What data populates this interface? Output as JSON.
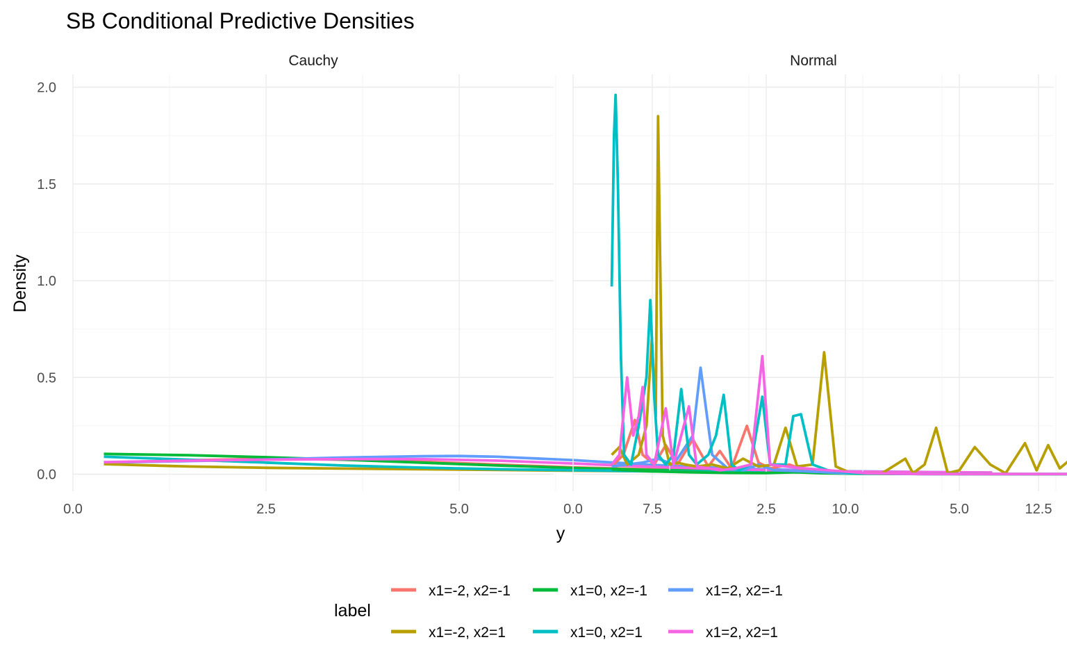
{
  "chart_data": {
    "type": "line",
    "title": "SB Conditional Predictive Densities",
    "xlabel": "y",
    "ylabel": "Density",
    "xlim": [
      0,
      12.5
    ],
    "ylim": [
      0,
      2.0
    ],
    "x_ticks": [
      "0.0",
      "2.5",
      "5.0",
      "7.5",
      "10.0",
      "12.5"
    ],
    "y_ticks": [
      "0.0",
      "0.5",
      "1.0",
      "1.5",
      "2.0"
    ],
    "grid": true,
    "legend": {
      "title": "label",
      "position": "bottom",
      "entries": [
        {
          "label": "x1=-2, x2=-1",
          "color": "#F8766D"
        },
        {
          "label": "x1=0, x2=-1",
          "color": "#00BA38"
        },
        {
          "label": "x1=2, x2=-1",
          "color": "#619CFF"
        },
        {
          "label": "x1=-2, x2=1",
          "color": "#B79F00"
        },
        {
          "label": "x1=0, x2=1",
          "color": "#00BFC4"
        },
        {
          "label": "x1=2, x2=1",
          "color": "#F564E3"
        }
      ]
    },
    "panels": [
      {
        "name": "Cauchy",
        "series": [
          {
            "name": "x1=-2, x2=-1",
            "color": "#F8766D",
            "points": [
              [
                0.4,
                0.06
              ],
              [
                1.5,
                0.072
              ],
              [
                2.5,
                0.08
              ],
              [
                3.5,
                0.075
              ],
              [
                4.5,
                0.065
              ],
              [
                5.5,
                0.05
              ],
              [
                6.5,
                0.035
              ],
              [
                7.5,
                0.025
              ],
              [
                8.5,
                0.018
              ],
              [
                10,
                0.012
              ],
              [
                11.9,
                0.008
              ]
            ]
          },
          {
            "name": "x1=0, x2=-1",
            "color": "#00BA38",
            "points": [
              [
                0.4,
                0.105
              ],
              [
                1.5,
                0.098
              ],
              [
                2.5,
                0.088
              ],
              [
                3.5,
                0.075
              ],
              [
                4.5,
                0.06
              ],
              [
                5.5,
                0.045
              ],
              [
                6.5,
                0.032
              ],
              [
                7.5,
                0.022
              ],
              [
                8.5,
                0.016
              ],
              [
                10,
                0.01
              ],
              [
                11.9,
                0.006
              ]
            ]
          },
          {
            "name": "x1=2, x2=-1",
            "color": "#619CFF",
            "points": [
              [
                0.4,
                0.06
              ],
              [
                1.5,
                0.068
              ],
              [
                2.5,
                0.076
              ],
              [
                3.5,
                0.086
              ],
              [
                4.5,
                0.093
              ],
              [
                5.0,
                0.094
              ],
              [
                5.5,
                0.09
              ],
              [
                6.5,
                0.072
              ],
              [
                7.5,
                0.048
              ],
              [
                8.5,
                0.03
              ],
              [
                10,
                0.015
              ],
              [
                11.9,
                0.008
              ]
            ]
          },
          {
            "name": "x1=-2, x2=1",
            "color": "#B79F00",
            "points": [
              [
                0.4,
                0.052
              ],
              [
                1.5,
                0.04
              ],
              [
                2.5,
                0.033
              ],
              [
                3.5,
                0.029
              ],
              [
                4.5,
                0.026
              ],
              [
                5.5,
                0.022
              ],
              [
                6.5,
                0.018
              ],
              [
                7.5,
                0.015
              ],
              [
                8.5,
                0.012
              ],
              [
                10,
                0.009
              ],
              [
                11.9,
                0.006
              ]
            ]
          },
          {
            "name": "x1=0, x2=1",
            "color": "#00BFC4",
            "points": [
              [
                0.4,
                0.09
              ],
              [
                1.5,
                0.075
              ],
              [
                2.5,
                0.06
              ],
              [
                3.5,
                0.045
              ],
              [
                4.5,
                0.034
              ],
              [
                5.5,
                0.026
              ],
              [
                6.5,
                0.02
              ],
              [
                7.5,
                0.015
              ],
              [
                8.5,
                0.012
              ],
              [
                10,
                0.008
              ],
              [
                11.9,
                0.005
              ]
            ]
          },
          {
            "name": "x1=2, x2=1",
            "color": "#F564E3",
            "points": [
              [
                0.4,
                0.062
              ],
              [
                1.5,
                0.07
              ],
              [
                2.5,
                0.075
              ],
              [
                3.5,
                0.078
              ],
              [
                4.5,
                0.078
              ],
              [
                5.5,
                0.07
              ],
              [
                6.5,
                0.055
              ],
              [
                7.5,
                0.038
              ],
              [
                8.5,
                0.025
              ],
              [
                10,
                0.014
              ],
              [
                11.9,
                0.008
              ]
            ]
          }
        ]
      },
      {
        "name": "Normal",
        "series": [
          {
            "name": "x1=-2, x2=-1",
            "color": "#F8766D",
            "points": [
              [
                0.5,
                0.04
              ],
              [
                0.65,
                0.1
              ],
              [
                0.8,
                0.28
              ],
              [
                0.9,
                0.1
              ],
              [
                1.05,
                0.05
              ],
              [
                1.2,
                0.15
              ],
              [
                1.35,
                0.05
              ],
              [
                1.55,
                0.18
              ],
              [
                1.75,
                0.04
              ],
              [
                1.9,
                0.12
              ],
              [
                2.05,
                0.03
              ],
              [
                2.25,
                0.25
              ],
              [
                2.4,
                0.06
              ],
              [
                2.55,
                0.03
              ],
              [
                2.8,
                0.05
              ],
              [
                3.0,
                0.02
              ],
              [
                3.5,
                0.008
              ],
              [
                4.0,
                0.003
              ],
              [
                5,
                0.001
              ],
              [
                12,
                0
              ]
            ]
          },
          {
            "name": "x1=0, x2=-1",
            "color": "#00BA38",
            "points": [
              [
                0.5,
                0.025
              ],
              [
                1.0,
                0.015
              ],
              [
                1.5,
                0.01
              ],
              [
                2.0,
                0.007
              ],
              [
                2.5,
                0.006
              ],
              [
                2.9,
                0.01
              ],
              [
                3.2,
                0.005
              ],
              [
                3.7,
                0.002
              ],
              [
                4.5,
                0.001
              ],
              [
                6,
                0
              ],
              [
                12,
                0
              ]
            ]
          },
          {
            "name": "x1=2, x2=-1",
            "color": "#619CFF",
            "points": [
              [
                0.5,
                0.04
              ],
              [
                0.9,
                0.06
              ],
              [
                1.1,
                0.08
              ],
              [
                1.3,
                0.05
              ],
              [
                1.55,
                0.2
              ],
              [
                1.65,
                0.55
              ],
              [
                1.8,
                0.1
              ],
              [
                2.0,
                0.03
              ],
              [
                2.2,
                0.02
              ],
              [
                2.4,
                0.05
              ],
              [
                2.6,
                0.02
              ],
              [
                3.0,
                0.015
              ],
              [
                3.5,
                0.005
              ],
              [
                4.5,
                0.001
              ],
              [
                12,
                0
              ]
            ]
          },
          {
            "name": "x1=-2, x2=1",
            "color": "#B79F00",
            "points": [
              [
                0.5,
                0.1
              ],
              [
                0.6,
                0.14
              ],
              [
                0.7,
                0.05
              ],
              [
                0.85,
                0.1
              ],
              [
                0.95,
                0.25
              ],
              [
                1.02,
                0.7
              ],
              [
                1.07,
                0.3
              ],
              [
                1.1,
                1.85
              ],
              [
                1.16,
                0.2
              ],
              [
                1.25,
                0.05
              ],
              [
                1.35,
                0.06
              ],
              [
                1.45,
                0.05
              ],
              [
                1.6,
                0.04
              ],
              [
                1.8,
                0.05
              ],
              [
                2.0,
                0.03
              ],
              [
                2.2,
                0.08
              ],
              [
                2.4,
                0.04
              ],
              [
                2.6,
                0.05
              ],
              [
                2.75,
                0.24
              ],
              [
                2.9,
                0.04
              ],
              [
                3.1,
                0.05
              ],
              [
                3.25,
                0.63
              ],
              [
                3.4,
                0.04
              ],
              [
                3.6,
                0.005
              ],
              [
                4.0,
                0.005
              ],
              [
                4.3,
                0.08
              ],
              [
                4.4,
                0.005
              ],
              [
                4.55,
                0.05
              ],
              [
                4.7,
                0.24
              ],
              [
                4.85,
                0.005
              ],
              [
                5.0,
                0.02
              ],
              [
                5.2,
                0.14
              ],
              [
                5.4,
                0.05
              ],
              [
                5.6,
                0.005
              ],
              [
                5.85,
                0.16
              ],
              [
                6.0,
                0.02
              ],
              [
                6.15,
                0.15
              ],
              [
                6.3,
                0.03
              ],
              [
                6.45,
                0.08
              ],
              [
                6.6,
                0.005
              ],
              [
                6.9,
                0.21
              ],
              [
                7.05,
                0.005
              ],
              [
                7.3,
                0.005
              ],
              [
                7.45,
                0.06
              ],
              [
                7.55,
                0.05
              ],
              [
                7.7,
                0.16
              ],
              [
                7.85,
                0.005
              ],
              [
                8.1,
                0.08
              ],
              [
                8.25,
                0.005
              ],
              [
                9,
                0
              ],
              [
                12,
                0
              ]
            ]
          },
          {
            "name": "x1=0, x2=1",
            "color": "#00BFC4",
            "points": [
              [
                0.5,
                0.97
              ],
              [
                0.53,
                1.75
              ],
              [
                0.55,
                1.96
              ],
              [
                0.58,
                1.5
              ],
              [
                0.62,
                0.6
              ],
              [
                0.66,
                0.1
              ],
              [
                0.75,
                0.05
              ],
              [
                0.85,
                0.25
              ],
              [
                0.95,
                0.5
              ],
              [
                1.0,
                0.9
              ],
              [
                1.05,
                0.4
              ],
              [
                1.1,
                0.1
              ],
              [
                1.2,
                0.05
              ],
              [
                1.3,
                0.1
              ],
              [
                1.4,
                0.44
              ],
              [
                1.5,
                0.1
              ],
              [
                1.6,
                0.05
              ],
              [
                1.75,
                0.1
              ],
              [
                1.85,
                0.2
              ],
              [
                1.95,
                0.41
              ],
              [
                2.05,
                0.05
              ],
              [
                2.15,
                0.02
              ],
              [
                2.3,
                0.05
              ],
              [
                2.45,
                0.4
              ],
              [
                2.55,
                0.05
              ],
              [
                2.75,
                0.05
              ],
              [
                2.85,
                0.3
              ],
              [
                2.95,
                0.31
              ],
              [
                3.1,
                0.05
              ],
              [
                3.3,
                0.02
              ],
              [
                3.6,
                0.005
              ],
              [
                4.5,
                0.001
              ],
              [
                12,
                0
              ]
            ]
          },
          {
            "name": "x1=2, x2=1",
            "color": "#F564E3",
            "points": [
              [
                0.5,
                0.05
              ],
              [
                0.6,
                0.1
              ],
              [
                0.7,
                0.5
              ],
              [
                0.78,
                0.2
              ],
              [
                0.85,
                0.3
              ],
              [
                0.9,
                0.45
              ],
              [
                0.95,
                0.1
              ],
              [
                1.05,
                0.05
              ],
              [
                1.2,
                0.34
              ],
              [
                1.3,
                0.05
              ],
              [
                1.4,
                0.2
              ],
              [
                1.5,
                0.35
              ],
              [
                1.6,
                0.04
              ],
              [
                1.75,
                0.03
              ],
              [
                1.9,
                0.02
              ],
              [
                2.1,
                0.03
              ],
              [
                2.3,
                0.05
              ],
              [
                2.45,
                0.61
              ],
              [
                2.55,
                0.05
              ],
              [
                2.75,
                0.04
              ],
              [
                3.0,
                0.03
              ],
              [
                3.3,
                0.02
              ],
              [
                3.8,
                0.005
              ],
              [
                4.5,
                0.001
              ],
              [
                12,
                0
              ]
            ]
          }
        ]
      }
    ]
  }
}
